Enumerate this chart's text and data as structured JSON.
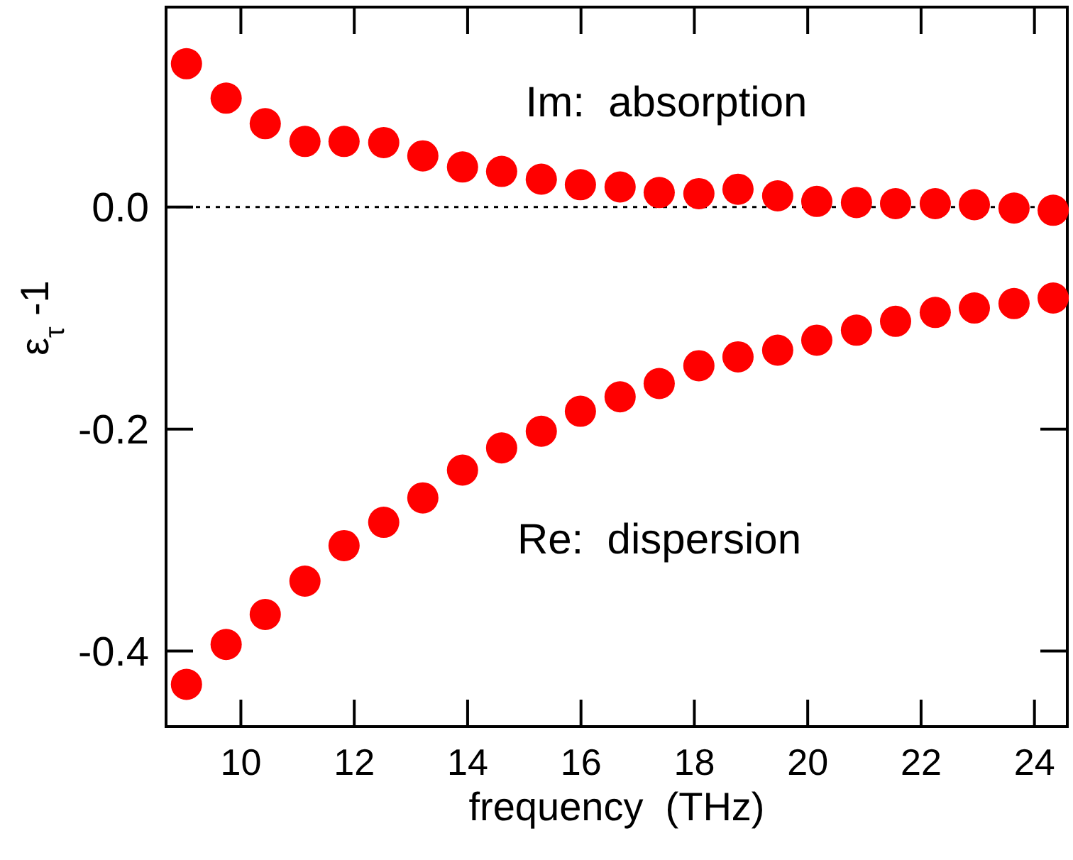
{
  "chart_data": {
    "type": "scatter",
    "xlabel": "frequency  (THz)",
    "ylabel": "ε$_{τ}$ -1",
    "x": [
      9.04,
      9.74,
      10.43,
      11.13,
      11.82,
      12.52,
      13.21,
      13.91,
      14.6,
      15.3,
      15.99,
      16.69,
      17.38,
      18.08,
      18.77,
      19.47,
      20.16,
      20.86,
      21.55,
      22.25,
      22.94,
      23.64,
      24.33
    ],
    "series": [
      {
        "color": "#ff0000",
        "values": [
          0.129,
          0.098,
          0.075,
          0.059,
          0.059,
          0.058,
          0.046,
          0.036,
          0.032,
          0.025,
          0.02,
          0.018,
          0.013,
          0.012,
          0.016,
          0.01,
          0.005,
          0.004,
          0.003,
          0.003,
          0.002,
          -0.001,
          -0.003
        ]
      },
      {
        "color": "#ff0000",
        "values": [
          -0.43,
          -0.394,
          -0.367,
          -0.337,
          -0.305,
          -0.284,
          -0.262,
          -0.237,
          -0.217,
          -0.202,
          -0.184,
          -0.171,
          -0.159,
          -0.143,
          -0.135,
          -0.129,
          -0.12,
          -0.111,
          -0.103,
          -0.095,
          -0.091,
          -0.087,
          -0.082
        ]
      }
    ],
    "xlim": [
      8.68,
      24.58
    ],
    "ylim": [
      -0.468,
      0.18
    ],
    "xticks": [
      10,
      12,
      14,
      16,
      18,
      20,
      22,
      24
    ],
    "yticks": [
      {
        "value": 0,
        "label": "0.0"
      },
      {
        "value": -0.2,
        "label": "-0.2"
      },
      {
        "value": -0.4,
        "label": "-0.4"
      }
    ],
    "ref_lines": [
      {
        "axis": "y",
        "value": 0,
        "color": "#000000",
        "line_style": "dotted"
      }
    ],
    "annotations": [
      "Im:  absorption",
      "Re:  dispersion"
    ],
    "marker": "circle",
    "grid": false
  }
}
